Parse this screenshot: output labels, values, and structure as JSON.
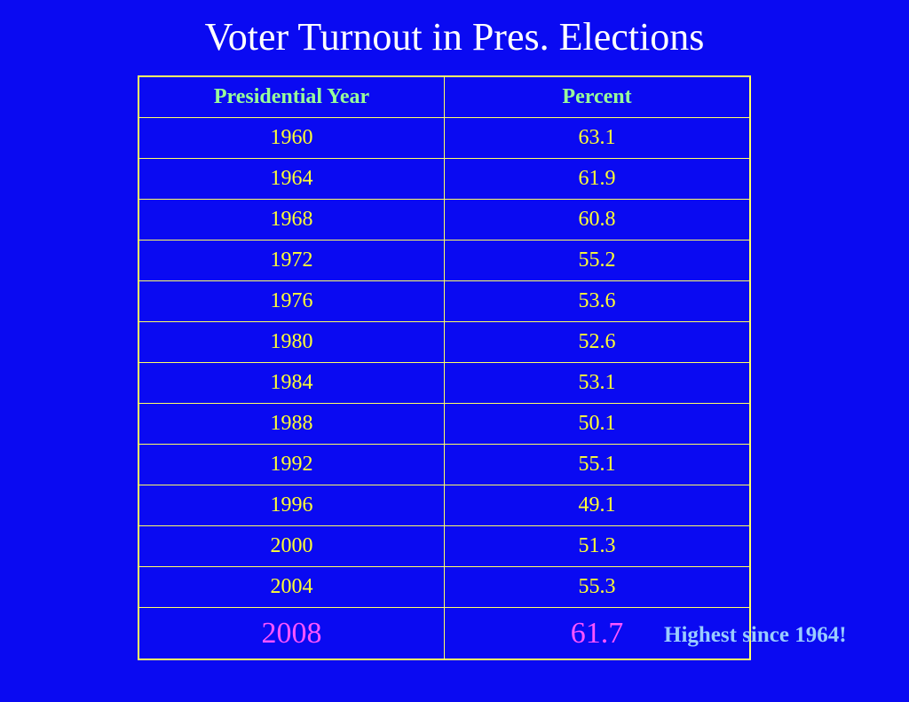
{
  "header": {
    "title": "Voter Turnout in Pres. Elections"
  },
  "table": {
    "columns": [
      "Presidential Year",
      "Percent"
    ],
    "rows": [
      [
        1960,
        63.1
      ],
      [
        1964,
        61.9
      ],
      [
        1968,
        60.8
      ],
      [
        1972,
        55.2
      ],
      [
        1976,
        53.6
      ],
      [
        1980,
        52.6
      ],
      [
        1984,
        53.1
      ],
      [
        1988,
        50.1
      ],
      [
        1992,
        55.1
      ],
      [
        1996,
        49.1
      ],
      [
        2000,
        51.3
      ],
      [
        2004,
        55.3
      ],
      [
        2008,
        61.7
      ]
    ]
  },
  "annotation": "Highest since 1964!"
}
